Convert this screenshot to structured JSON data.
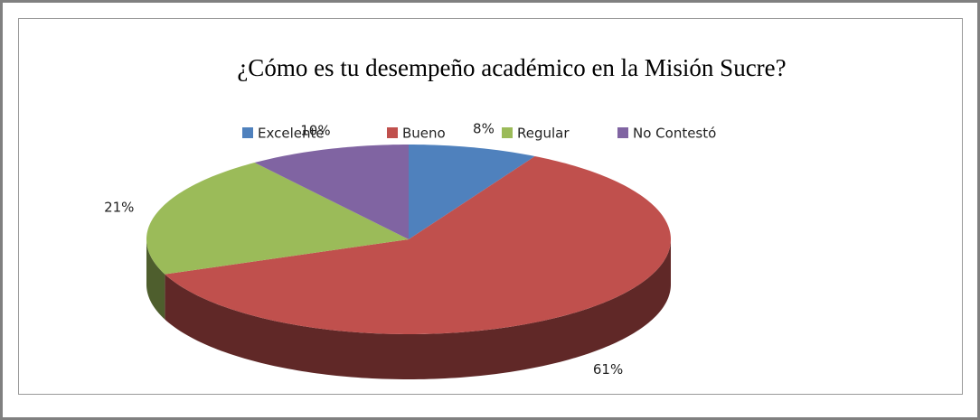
{
  "chart_data": {
    "type": "pie3d",
    "title": "¿Cómo es tu desempeño académico en la Misión Sucre?",
    "categories": [
      "Excelente",
      "Bueno",
      "Regular",
      "No Contestó"
    ],
    "values": [
      8,
      61,
      21,
      10
    ],
    "value_labels": [
      "8%",
      "61%",
      "21%",
      "10%"
    ],
    "colors": [
      "#4f81bd",
      "#c0504d",
      "#9bbb59",
      "#8064a2"
    ],
    "legend": "top"
  }
}
